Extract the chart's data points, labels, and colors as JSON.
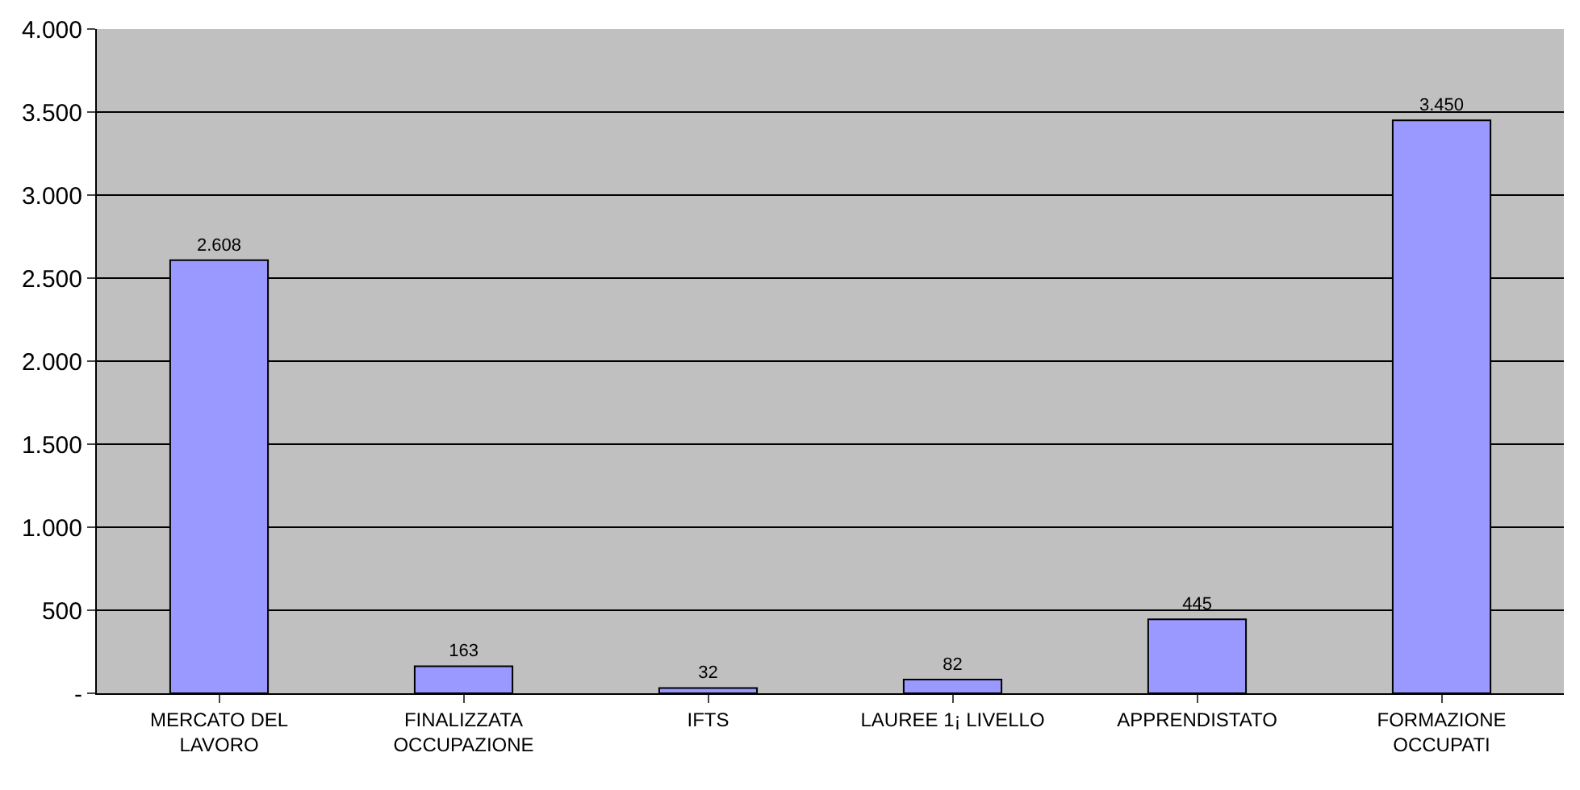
{
  "chart_data": {
    "type": "bar",
    "categories": [
      "MERCATO DEL\nLAVORO",
      "FINALIZZATA\nOCCUPAZIONE",
      "IFTS",
      "LAUREE 1¡ LIVELLO",
      "APPRENDISTATO",
      "FORMAZIONE\nOCCUPATI"
    ],
    "values": [
      2608,
      163,
      32,
      82,
      445,
      3450
    ],
    "value_labels": [
      "2.608",
      "163",
      "32",
      "82",
      "445",
      "3.450"
    ],
    "color": "#9999ff",
    "ylim": [
      0,
      4000
    ],
    "yticks": [
      {
        "value": 0,
        "label": "-"
      },
      {
        "value": 500,
        "label": "500"
      },
      {
        "value": 1000,
        "label": "1.000"
      },
      {
        "value": 1500,
        "label": "1.500"
      },
      {
        "value": 2000,
        "label": "2.000"
      },
      {
        "value": 2500,
        "label": "2.500"
      },
      {
        "value": 3000,
        "label": "3.000"
      },
      {
        "value": 3500,
        "label": "3.500"
      },
      {
        "value": 4000,
        "label": "4.000"
      }
    ],
    "grid": "y",
    "legend": false
  }
}
